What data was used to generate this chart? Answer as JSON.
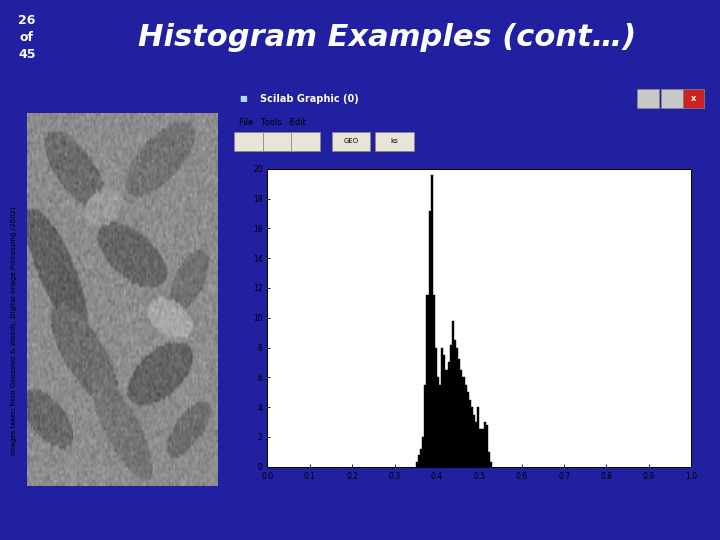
{
  "slide_bg": "#2020a0",
  "slide_number": "26\nof\n45",
  "title": "Histogram Examples (cont…)",
  "title_color": "#ffffff",
  "title_fontsize": 22,
  "slide_num_fontsize": 9,
  "scilab_window_title": "Scilab Graphic (0)",
  "scilab_titlebar_color": "#1c5fc8",
  "scilab_menubar_color": "#d4d0c8",
  "scilab_toolbar_color": "#d4d0c8",
  "scilab_plot_bg": "#ffffff",
  "hist_xlim": [
    0.0,
    1.0
  ],
  "hist_ylim": [
    0,
    20
  ],
  "hist_xticks": [
    0.0,
    0.1,
    0.2,
    0.3,
    0.4,
    0.5,
    0.6,
    0.7,
    0.8,
    0.9,
    1.0
  ],
  "hist_yticks": [
    0,
    2,
    4,
    6,
    8,
    10,
    12,
    14,
    16,
    18,
    20
  ],
  "bar_positions": [
    0.35,
    0.355,
    0.36,
    0.365,
    0.37,
    0.375,
    0.38,
    0.385,
    0.39,
    0.395,
    0.4,
    0.405,
    0.41,
    0.415,
    0.42,
    0.425,
    0.43,
    0.435,
    0.44,
    0.445,
    0.45,
    0.455,
    0.46,
    0.465,
    0.47,
    0.475,
    0.48,
    0.485,
    0.49,
    0.495,
    0.5,
    0.505,
    0.51,
    0.515,
    0.52,
    0.525
  ],
  "bar_heights": [
    0.3,
    0.8,
    1.2,
    2.0,
    5.5,
    11.5,
    17.2,
    19.6,
    11.5,
    8.0,
    6.0,
    5.5,
    8.0,
    7.5,
    6.5,
    7.0,
    8.2,
    9.8,
    8.5,
    8.0,
    7.2,
    6.5,
    6.0,
    5.5,
    5.0,
    4.5,
    4.0,
    3.5,
    3.0,
    4.0,
    2.5,
    2.5,
    3.0,
    2.8,
    1.0,
    0.3
  ],
  "bar_width": 0.005,
  "bar_color": "#000000",
  "photo_bg": "#909090",
  "sidebar_text": "Images taken from Gonzalez & Woods, Digital Image Processing (2002)",
  "sidebar_text_color": "#000000",
  "content_bg": "#ffffff",
  "num_box_bg": "#16168c",
  "win_border_color": "#000080"
}
